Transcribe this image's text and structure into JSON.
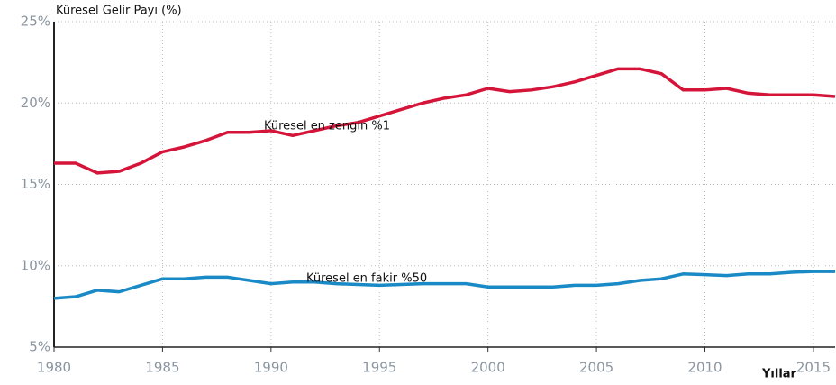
{
  "chart_data": {
    "type": "line",
    "y_axis_label": "Küresel Gelir Payı (%)",
    "x_axis_label": "Yıllar",
    "x": [
      1980,
      1981,
      1982,
      1983,
      1984,
      1985,
      1986,
      1987,
      1988,
      1989,
      1990,
      1991,
      1992,
      1993,
      1994,
      1995,
      1996,
      1997,
      1998,
      1999,
      2000,
      2001,
      2002,
      2003,
      2004,
      2005,
      2006,
      2007,
      2008,
      2009,
      2010,
      2011,
      2012,
      2013,
      2014,
      2015,
      2016
    ],
    "series": [
      {
        "name": "Küresel en zengin %1",
        "color": "#d5143a",
        "values": [
          16.3,
          16.3,
          15.7,
          15.8,
          16.3,
          17.0,
          17.3,
          17.7,
          18.2,
          18.2,
          18.3,
          18.0,
          18.3,
          18.6,
          18.8,
          19.2,
          19.6,
          20.0,
          20.3,
          20.5,
          20.9,
          20.7,
          20.8,
          21.0,
          21.3,
          21.7,
          22.1,
          22.1,
          21.8,
          20.8,
          20.8,
          20.9,
          20.6,
          20.5,
          20.5,
          20.5,
          20.4
        ]
      },
      {
        "name": "Küresel en fakir %50",
        "color": "#1a8ac6",
        "values": [
          8.0,
          8.1,
          8.5,
          8.4,
          8.8,
          9.2,
          9.2,
          9.3,
          9.3,
          9.1,
          8.9,
          9.0,
          9.0,
          8.9,
          8.85,
          8.8,
          8.85,
          8.9,
          8.9,
          8.9,
          8.7,
          8.7,
          8.7,
          8.7,
          8.8,
          8.8,
          8.9,
          9.1,
          9.2,
          9.5,
          9.45,
          9.4,
          9.5,
          9.5,
          9.6,
          9.65,
          9.65
        ]
      }
    ],
    "xlim": [
      1980,
      2016
    ],
    "xticks": [
      1980,
      1985,
      1990,
      1995,
      2000,
      2005,
      2010,
      2015
    ],
    "ylim": [
      5,
      25
    ],
    "yticks": [
      {
        "value": 5,
        "label": "5%"
      },
      {
        "value": 10,
        "label": "10%"
      },
      {
        "value": 15,
        "label": "15%"
      },
      {
        "value": 20,
        "label": "20%"
      },
      {
        "value": 25,
        "label": "25%"
      }
    ],
    "grid": true
  }
}
